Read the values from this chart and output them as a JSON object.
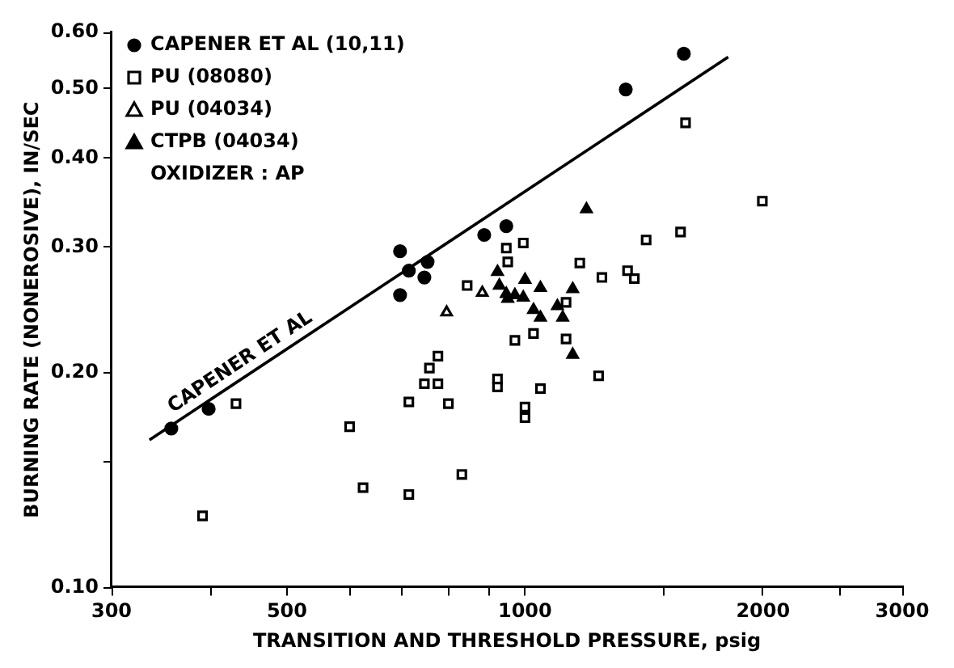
{
  "chart_data": {
    "type": "scatter",
    "xlabel": "TRANSITION AND THRESHOLD PRESSURE, psig",
    "ylabel": "BURNING RATE (NONEROSIVE), IN/SEC",
    "log": "xy",
    "grid": false,
    "legend": "top left",
    "xlim": [
      300,
      3000
    ],
    "xticks": [
      300,
      {
        "value": 400,
        "label": null
      },
      500,
      {
        "value": 600,
        "label": null
      },
      {
        "value": 700,
        "label": null
      },
      {
        "value": 800,
        "label": null
      },
      {
        "value": 900,
        "label": null
      },
      1000,
      {
        "value": 1500,
        "label": null
      },
      2000,
      {
        "value": 2500,
        "label": null
      },
      3000
    ],
    "ylim": [
      0.1,
      0.6
    ],
    "yticks": [
      {
        "value": 0.1,
        "label": "0.10"
      },
      {
        "value": 0.15,
        "label": null
      },
      {
        "value": 0.2,
        "label": "0.20"
      },
      {
        "value": 0.3,
        "label": "0.30"
      },
      {
        "value": 0.4,
        "label": "0.40"
      },
      {
        "value": 0.5,
        "label": "0.50"
      },
      {
        "value": 0.6,
        "label": "0.60"
      }
    ],
    "annotations": [
      "OXIDIZER : AP"
    ],
    "series": [
      {
        "name": "CAPENER ET AL (10,11)",
        "color": "#000000",
        "marker": "circle",
        "x": [
          695,
          713,
          753,
          746,
          695,
          888,
          947,
          1341,
          1588,
          357,
          398
        ],
        "values": [
          0.296,
          0.278,
          0.286,
          0.272,
          0.257,
          0.312,
          0.321,
          0.499,
          0.56,
          0.167,
          0.178
        ]
      },
      {
        "name": "PU (08080)",
        "color": "#000000",
        "marker": "square",
        "x": [
          845,
          947,
          1596,
          1996,
          995,
          951,
          1423,
          1573,
          1173,
          1251,
          1348,
          1375,
          1127,
          431,
          391,
          600,
          624,
          713,
          713,
          746,
          757,
          776,
          776,
          800,
          832,
          923,
          923,
          971,
          1025,
          1046,
          1000,
          1000,
          1239,
          1127
        ],
        "values": [
          0.265,
          0.299,
          0.448,
          0.348,
          0.304,
          0.286,
          0.307,
          0.315,
          0.285,
          0.272,
          0.278,
          0.271,
          0.251,
          0.181,
          0.126,
          0.168,
          0.138,
          0.182,
          0.135,
          0.193,
          0.203,
          0.211,
          0.193,
          0.181,
          0.144,
          0.196,
          0.191,
          0.222,
          0.227,
          0.19,
          0.179,
          0.173,
          0.198,
          0.223
        ]
      },
      {
        "name": "PU (04034)",
        "color": "#000000",
        "marker": "triangle",
        "x": [
          796,
          883
        ],
        "values": [
          0.243,
          0.259
        ]
      },
      {
        "name": "CTPB (04034)",
        "color": "#000000",
        "marker": "triangle",
        "x": [
          1196,
          1000,
          1046,
          1149,
          951,
          995,
          1025,
          1099,
          1116,
          1046,
          923,
          947,
          971,
          928,
          1149
        ],
        "values": [
          0.339,
          0.27,
          0.263,
          0.262,
          0.254,
          0.255,
          0.245,
          0.248,
          0.239,
          0.239,
          0.277,
          0.258,
          0.257,
          0.265,
          0.212
        ]
      },
      {
        "name": "CAPENER ET AL",
        "type": "line",
        "color": "#000000",
        "marker": "none",
        "line_style": "solid",
        "x": [
          335,
          1807
        ],
        "values": [
          0.161,
          0.554
        ]
      }
    ]
  }
}
